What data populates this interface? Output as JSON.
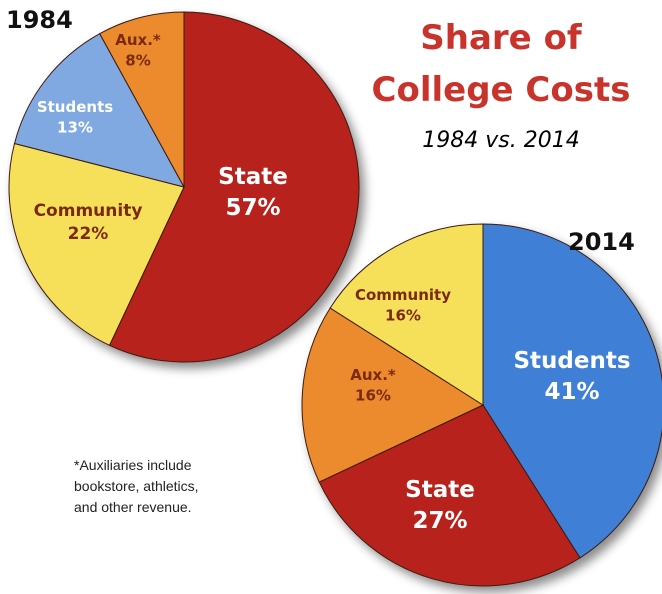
{
  "title_line1": "Share of",
  "title_line2": "College Costs",
  "subtitle": "1984 vs. 2014",
  "footnote": [
    "*Auxiliaries include",
    "bookstore, athletics,",
    "and other revenue."
  ],
  "colors": {
    "title": "#c8342c",
    "state": "#b7231e",
    "students": "#3f7fd6",
    "community": "#f6e05a",
    "aux": "#ec8a2f",
    "students_1984": "#7fa9e0",
    "label_dark": "#7a2a10",
    "label_light": "#ffffff"
  },
  "chart_data": [
    {
      "type": "pie",
      "year_label": "1984",
      "slices": [
        {
          "label": "State",
          "value": 57,
          "display": "57%"
        },
        {
          "label": "Community",
          "value": 22,
          "display": "22%"
        },
        {
          "label": "Students",
          "value": 13,
          "display": "13%"
        },
        {
          "label": "Aux.*",
          "value": 8,
          "display": "8%"
        }
      ]
    },
    {
      "type": "pie",
      "year_label": "2014",
      "slices": [
        {
          "label": "Students",
          "value": 41,
          "display": "41%"
        },
        {
          "label": "State",
          "value": 27,
          "display": "27%"
        },
        {
          "label": "Aux.*",
          "value": 16,
          "display": "16%"
        },
        {
          "label": "Community",
          "value": 16,
          "display": "16%"
        }
      ]
    }
  ]
}
